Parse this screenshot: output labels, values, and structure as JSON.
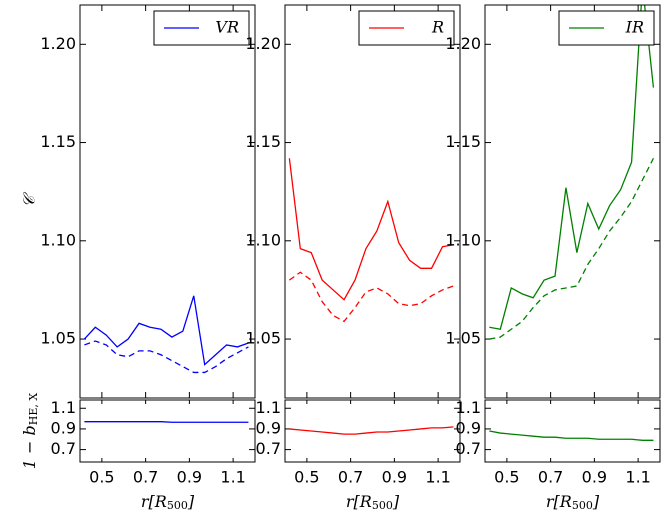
{
  "chart_data": [
    {
      "type": "line",
      "legend": "upper right",
      "ylabel": "𝒞",
      "bias_ylabel": {
        "main": "1 − b",
        "sub": "HE, X"
      },
      "xlabel": {
        "main": "r[R",
        "sub": "500",
        "tail": "]"
      },
      "x": [
        0.42,
        0.47,
        0.52,
        0.57,
        0.62,
        0.67,
        0.72,
        0.77,
        0.82,
        0.87,
        0.92,
        0.97,
        1.02,
        1.07,
        1.12,
        1.17
      ],
      "xlim": [
        0.4,
        1.2
      ],
      "xticks": [
        0.5,
        0.7,
        0.9,
        1.1
      ],
      "ylim": [
        1.02,
        1.22
      ],
      "yticks": [
        1.05,
        {
          "value": 1.1,
          "label": "1.10"
        },
        1.15,
        {
          "value": 1.2,
          "label": "1.20"
        }
      ],
      "series": [
        {
          "name": "VR",
          "color": "#0000ff",
          "values": [
            1.05,
            1.056,
            1.052,
            1.046,
            1.05,
            1.058,
            1.056,
            1.055,
            1.051,
            1.054,
            1.072,
            1.037,
            1.042,
            1.047,
            1.046,
            1.048
          ]
        },
        {
          "color": "#0000ff",
          "dashed": true,
          "values": [
            1.047,
            1.049,
            1.047,
            1.042,
            1.041,
            1.044,
            1.044,
            1.042,
            1.039,
            1.036,
            1.033,
            1.033,
            1.036,
            1.04,
            1.043,
            1.046
          ]
        }
      ],
      "bias": {
        "ylim": [
          0.58,
          1.18
        ],
        "yticks": [
          0.7,
          0.9,
          1.1
        ],
        "color": "#0000ff",
        "values": [
          0.97,
          0.97,
          0.97,
          0.97,
          0.97,
          0.97,
          0.97,
          0.97,
          0.965,
          0.965,
          0.965,
          0.965,
          0.965,
          0.965,
          0.965,
          0.965
        ]
      }
    },
    {
      "type": "line",
      "legend": "upper right",
      "xlabel": {
        "main": "r[R",
        "sub": "500",
        "tail": "]"
      },
      "x": [
        0.42,
        0.47,
        0.52,
        0.57,
        0.62,
        0.67,
        0.72,
        0.77,
        0.82,
        0.87,
        0.92,
        0.97,
        1.02,
        1.07,
        1.12,
        1.17
      ],
      "xlim": [
        0.4,
        1.2
      ],
      "xticks": [
        0.5,
        0.7,
        0.9,
        1.1
      ],
      "ylim": [
        1.02,
        1.22
      ],
      "yticks": [
        1.05,
        {
          "value": 1.1,
          "label": "1.10"
        },
        1.15,
        {
          "value": 1.2,
          "label": "1.20"
        }
      ],
      "series": [
        {
          "name": "R",
          "color": "#ff0000",
          "values": [
            1.142,
            1.096,
            1.094,
            1.08,
            1.075,
            1.07,
            1.08,
            1.096,
            1.105,
            1.12,
            1.099,
            1.09,
            1.086,
            1.086,
            1.097,
            1.098
          ]
        },
        {
          "color": "#ff0000",
          "dashed": true,
          "values": [
            1.08,
            1.084,
            1.08,
            1.069,
            1.062,
            1.059,
            1.066,
            1.074,
            1.076,
            1.073,
            1.068,
            1.067,
            1.068,
            1.072,
            1.075,
            1.077
          ]
        }
      ],
      "bias": {
        "ylim": [
          0.58,
          1.18
        ],
        "yticks": [
          0.7,
          0.9,
          1.1
        ],
        "color": "#ff0000",
        "values": [
          0.9,
          0.89,
          0.88,
          0.87,
          0.86,
          0.85,
          0.85,
          0.86,
          0.87,
          0.87,
          0.88,
          0.89,
          0.9,
          0.91,
          0.91,
          0.92
        ]
      }
    },
    {
      "type": "line",
      "legend": "upper right",
      "xlabel": {
        "main": "r[R",
        "sub": "500",
        "tail": "]"
      },
      "x": [
        0.42,
        0.47,
        0.52,
        0.57,
        0.62,
        0.67,
        0.72,
        0.77,
        0.82,
        0.87,
        0.92,
        0.97,
        1.02,
        1.07,
        1.12,
        1.17
      ],
      "xlim": [
        0.4,
        1.2
      ],
      "xticks": [
        0.5,
        0.7,
        0.9,
        1.1
      ],
      "ylim": [
        1.02,
        1.22
      ],
      "yticks": [
        1.05,
        {
          "value": 1.1,
          "label": "1.10"
        },
        1.15,
        {
          "value": 1.2,
          "label": "1.20"
        }
      ],
      "series": [
        {
          "name": "IR",
          "color": "#008000",
          "values": [
            1.056,
            1.055,
            1.076,
            1.073,
            1.071,
            1.08,
            1.082,
            1.127,
            1.094,
            1.119,
            1.106,
            1.118,
            1.126,
            1.14,
            1.23,
            1.178
          ]
        },
        {
          "color": "#008000",
          "dashed": true,
          "values": [
            1.05,
            1.051,
            1.055,
            1.059,
            1.066,
            1.072,
            1.075,
            1.076,
            1.077,
            1.088,
            1.096,
            1.105,
            1.112,
            1.12,
            1.131,
            1.142
          ]
        }
      ],
      "bias": {
        "ylim": [
          0.58,
          1.18
        ],
        "yticks": [
          0.7,
          0.9,
          1.1
        ],
        "color": "#008000",
        "values": [
          0.88,
          0.86,
          0.85,
          0.84,
          0.83,
          0.82,
          0.82,
          0.81,
          0.81,
          0.81,
          0.8,
          0.8,
          0.8,
          0.8,
          0.79,
          0.79
        ]
      }
    }
  ]
}
